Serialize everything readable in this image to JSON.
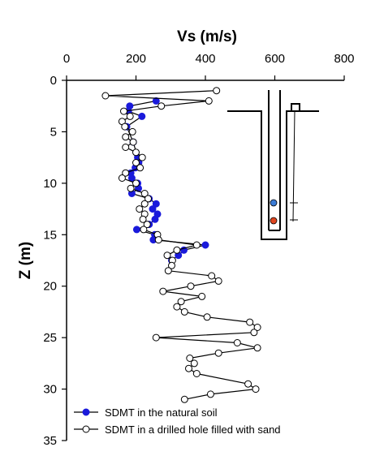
{
  "chart_data": {
    "type": "scatter",
    "xlabel": "Vs (m/s)",
    "ylabel": "Z (m)",
    "x_axis_position": "top",
    "y_axis_inverted": true,
    "xlim": [
      0,
      800
    ],
    "ylim": [
      0,
      35
    ],
    "x_ticks": [
      "0",
      "200",
      "400",
      "600",
      "800"
    ],
    "y_ticks": [
      "0",
      "5",
      "10",
      "15",
      "20",
      "25",
      "30",
      "35"
    ],
    "legend_position": "bottom-left",
    "series": [
      {
        "name": "SDMT in the natural soil",
        "marker": "filled-circle",
        "color": "#1a1adb",
        "points": [
          [
            258,
            2.0
          ],
          [
            182,
            2.5
          ],
          [
            178,
            3.0
          ],
          [
            217,
            3.5
          ],
          [
            173,
            4.5
          ],
          [
            192,
            6.0
          ],
          [
            205,
            7.5
          ],
          [
            208,
            8.0
          ],
          [
            198,
            8.5
          ],
          [
            185,
            9.0
          ],
          [
            188,
            9.5
          ],
          [
            205,
            10.0
          ],
          [
            207,
            10.5
          ],
          [
            188,
            11.0
          ],
          [
            238,
            11.5
          ],
          [
            258,
            12.0
          ],
          [
            248,
            12.5
          ],
          [
            262,
            13.0
          ],
          [
            255,
            13.5
          ],
          [
            238,
            14.0
          ],
          [
            202,
            14.5
          ],
          [
            254,
            15.0
          ],
          [
            250,
            15.5
          ],
          [
            400,
            16.0
          ],
          [
            338,
            16.5
          ],
          [
            322,
            17.0
          ],
          [
            303,
            17.5
          ]
        ]
      },
      {
        "name": "SDMT in a drilled hole filled with sand",
        "marker": "open-circle",
        "color": "#000000",
        "points": [
          [
            432,
            1.0
          ],
          [
            112,
            1.5
          ],
          [
            410,
            2.0
          ],
          [
            273,
            2.5
          ],
          [
            165,
            3.0
          ],
          [
            183,
            3.5
          ],
          [
            160,
            4.0
          ],
          [
            168,
            4.5
          ],
          [
            190,
            5.0
          ],
          [
            170,
            5.5
          ],
          [
            192,
            6.0
          ],
          [
            170,
            6.5
          ],
          [
            200,
            7.0
          ],
          [
            218,
            7.5
          ],
          [
            200,
            8.0
          ],
          [
            212,
            8.5
          ],
          [
            170,
            9.0
          ],
          [
            160,
            9.5
          ],
          [
            200,
            10.0
          ],
          [
            185,
            10.5
          ],
          [
            225,
            11.0
          ],
          [
            235,
            11.5
          ],
          [
            225,
            12.0
          ],
          [
            210,
            12.5
          ],
          [
            225,
            13.0
          ],
          [
            220,
            13.5
          ],
          [
            232,
            14.0
          ],
          [
            222,
            14.5
          ],
          [
            262,
            15.0
          ],
          [
            265,
            15.5
          ],
          [
            375,
            16.0
          ],
          [
            318,
            16.5
          ],
          [
            290,
            17.0
          ],
          [
            305,
            17.5
          ],
          [
            303,
            18.0
          ],
          [
            293,
            18.5
          ],
          [
            418,
            19.0
          ],
          [
            438,
            19.5
          ],
          [
            358,
            20.0
          ],
          [
            278,
            20.5
          ],
          [
            390,
            21.0
          ],
          [
            330,
            21.5
          ],
          [
            318,
            22.0
          ],
          [
            340,
            22.5
          ],
          [
            405,
            23.0
          ],
          [
            528,
            23.5
          ],
          [
            550,
            24.0
          ],
          [
            540,
            24.5
          ],
          [
            258,
            25.0
          ],
          [
            492,
            25.5
          ],
          [
            550,
            26.0
          ],
          [
            438,
            26.5
          ],
          [
            355,
            27.0
          ],
          [
            368,
            27.5
          ],
          [
            352,
            28.0
          ],
          [
            375,
            28.5
          ],
          [
            523,
            29.5
          ],
          [
            545,
            30.0
          ],
          [
            415,
            30.5
          ],
          [
            340,
            31.0
          ]
        ]
      }
    ]
  }
}
